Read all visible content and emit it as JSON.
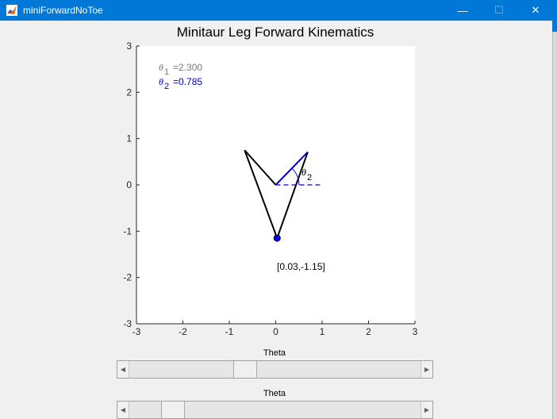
{
  "window": {
    "title": "miniForwardNoToe",
    "minimize_glyph": "—",
    "maximize_glyph": "☐",
    "close_glyph": "✕"
  },
  "plot": {
    "title": "Minitaur Leg Forward Kinematics",
    "xticks": [
      "-3",
      "-2",
      "-1",
      "0",
      "1",
      "2",
      "3"
    ],
    "yticks": [
      "3",
      "2",
      "1",
      "0",
      "-1",
      "-2",
      "-3"
    ],
    "theta1_symbol": "θ",
    "theta1_sub": "1",
    "theta1_value": "=2.300",
    "theta2_symbol": "θ",
    "theta2_sub": "2",
    "theta2_value": "=0.785",
    "angle_label": "θ",
    "angle_sub": "2",
    "foot_label": "[0.03,-1.15]",
    "colors": {
      "theta1_text": "#7a7a7a",
      "theta2": "#0000cc",
      "leg": "#000000",
      "foot": "#0000ff"
    }
  },
  "chart_data": {
    "type": "line",
    "xlim": [
      -3,
      3
    ],
    "ylim": [
      -3,
      3
    ],
    "grid": false,
    "series": [
      {
        "points": [
          [
            0,
            0
          ],
          [
            -0.67,
            0.75
          ],
          [
            0.03,
            -1.15
          ],
          [
            0.69,
            0.71
          ],
          [
            0,
            0
          ]
        ]
      },
      {
        "points": [
          [
            0,
            0
          ],
          [
            1,
            0
          ]
        ]
      },
      {
        "points": [
          [
            0.03,
            -1.15
          ]
        ]
      }
    ]
  },
  "sliders": [
    {
      "label": "Theta",
      "value_fraction": 0.39
    },
    {
      "label": "Theta",
      "value_fraction": 0.12
    }
  ],
  "icons": {
    "left_arrow": "◀",
    "right_arrow": "▶"
  }
}
